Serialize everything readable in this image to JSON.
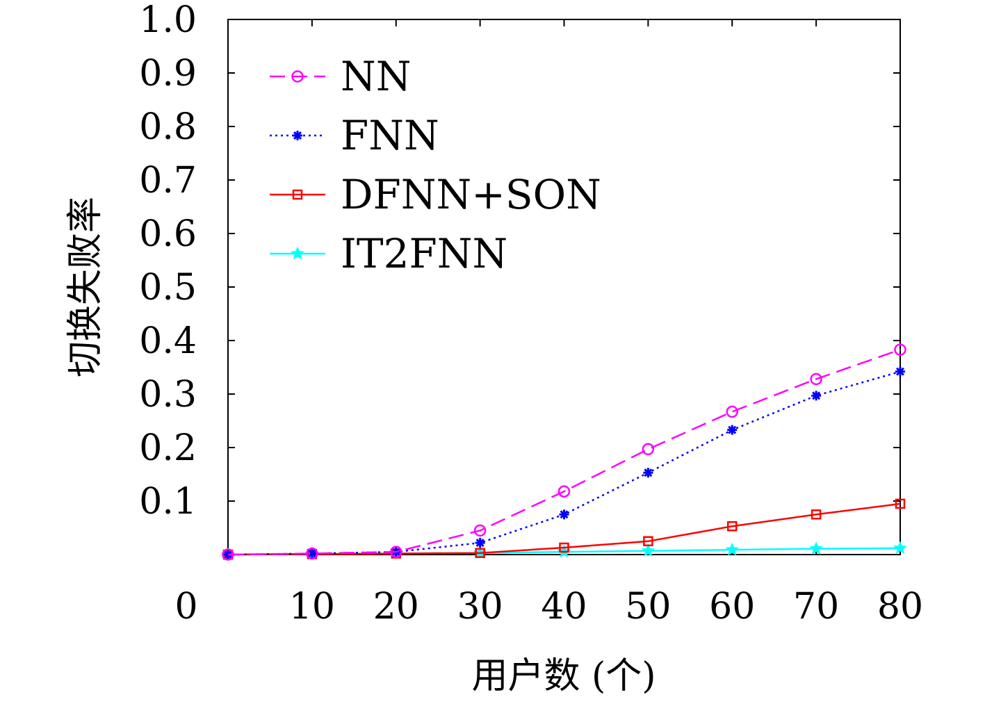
{
  "chart_data": {
    "type": "line",
    "title": "",
    "xlabel": "用户数 (个)",
    "ylabel": "切换失败率",
    "x_ticks": [
      "0",
      "10",
      "20",
      "30",
      "40",
      "50",
      "60",
      "70",
      "80"
    ],
    "y_ticks": [
      "0.1",
      "0.2",
      "0.3",
      "0.4",
      "0.5",
      "0.6",
      "0.7",
      "0.8",
      "0.9",
      "1.0"
    ],
    "xlim": [
      0,
      80
    ],
    "ylim": [
      0,
      1.0
    ],
    "legend_position": "top-left",
    "x": [
      0,
      10,
      20,
      30,
      40,
      50,
      60,
      70,
      80
    ],
    "series": [
      {
        "name": "NN",
        "color": "#ff00ff",
        "line_style": "dashed",
        "marker": "circle",
        "values": [
          0.0,
          0.002,
          0.005,
          0.045,
          0.118,
          0.197,
          0.267,
          0.328,
          0.383
        ]
      },
      {
        "name": "FNN",
        "color": "#0000ff",
        "line_style": "dotted",
        "marker": "asterisk",
        "values": [
          0.0,
          0.002,
          0.005,
          0.022,
          0.075,
          0.153,
          0.233,
          0.297,
          0.342
        ]
      },
      {
        "name": "DFNN+SON",
        "color": "#ff0000",
        "line_style": "solid",
        "marker": "square",
        "values": [
          0.0,
          0.001,
          0.002,
          0.003,
          0.013,
          0.025,
          0.053,
          0.075,
          0.095
        ]
      },
      {
        "name": "IT2FNN",
        "color": "#00ffff",
        "line_style": "solid",
        "marker": "star",
        "values": [
          0.0,
          0.001,
          0.002,
          0.003,
          0.005,
          0.007,
          0.009,
          0.011,
          0.012
        ]
      }
    ]
  }
}
